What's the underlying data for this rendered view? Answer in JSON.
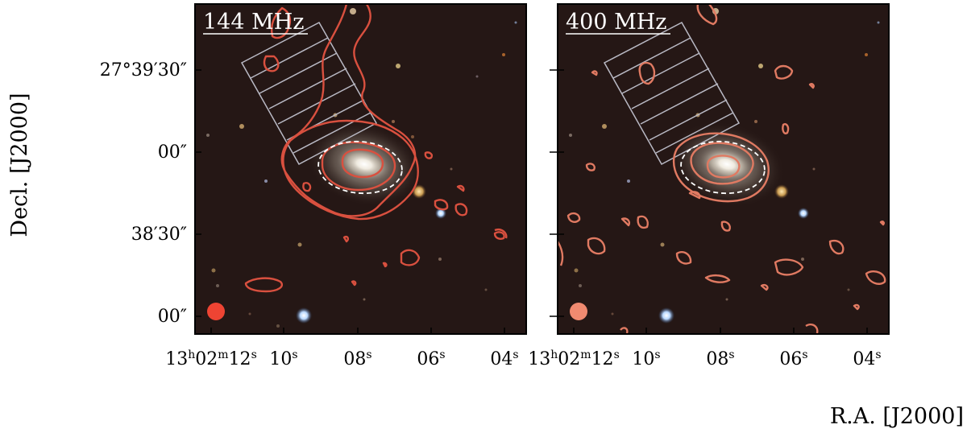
{
  "figure": {
    "y_axis_title": "Decl.  [J2000]",
    "x_axis_title": "R.A.  [J2000]",
    "colors": {
      "background": "#241614",
      "contour_144": "#d9503f",
      "contour_400": "#e07a62",
      "beam_144": "#ee4433",
      "beam_400": "#f08a70",
      "ellipse": "#ffffff",
      "grid_box": "#b9b9c4"
    }
  },
  "y_ticks": [
    {
      "label": "27°39′30″",
      "value": "+27:39:30"
    },
    {
      "label": "00″",
      "value": "+27:39:00"
    },
    {
      "label": "38′30″",
      "value": "+27:38:30"
    },
    {
      "label": "00″",
      "value": "+27:38:00"
    }
  ],
  "x_ticks": [
    {
      "label_parts": [
        "13",
        "h",
        "02",
        "m",
        "12",
        "s"
      ],
      "value": "13:02:12"
    },
    {
      "label_parts": [
        "10",
        "s"
      ],
      "value": "13:02:10"
    },
    {
      "label_parts": [
        "08",
        "s"
      ],
      "value": "13:02:08"
    },
    {
      "label_parts": [
        "06",
        "s"
      ],
      "value": "13:02:06"
    },
    {
      "label_parts": [
        "04",
        "s"
      ],
      "value": "13:02:04"
    }
  ],
  "panels": [
    {
      "id": "panel-144",
      "label": "144 MHz",
      "contour_color": "#d9503f",
      "beam_color": "#ee4433"
    },
    {
      "id": "panel-400",
      "label": "400 MHz",
      "contour_color": "#e07a62",
      "beam_color": "#f08a70"
    }
  ]
}
